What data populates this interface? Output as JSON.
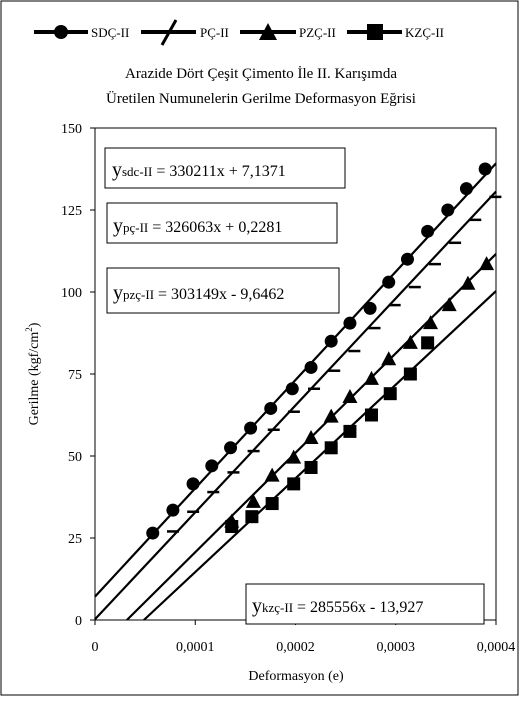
{
  "chart_data": {
    "type": "scatter",
    "title_line1": "Arazide Dört Çeşit Çimento İle II. Karışımda",
    "title_line2": "Üretilen Numunelerin Gerilme Deformasyon Eğrisi",
    "xlabel": "Deformasyon (e)",
    "ylabel_main": "Gerilme (kgf/cm",
    "ylabel_sup": "2",
    "ylabel_close": ")",
    "xlim": [
      0,
      0.0004
    ],
    "ylim": [
      0,
      150
    ],
    "x_ticks": [
      0,
      0.0001,
      0.0002,
      0.0003,
      0.0004
    ],
    "x_tick_labels": [
      "0",
      "0,0001",
      "0,0002",
      "0,0003",
      "0,0004"
    ],
    "y_ticks": [
      0,
      25,
      50,
      75,
      100,
      125,
      150
    ],
    "y_tick_labels": [
      "0",
      "25",
      "50",
      "75",
      "100",
      "125",
      "150"
    ],
    "grid": false,
    "legend_position": "top",
    "series": [
      {
        "name": "SDÇ-II",
        "marker": "circle",
        "x": [
          5.76e-05,
          7.77e-05,
          9.78e-05,
          0.0001165,
          0.0001352,
          0.0001552,
          0.0001753,
          0.0001968,
          0.0002155,
          0.0002356,
          0.0002543,
          0.0002744,
          0.000293,
          0.0003117,
          0.0003318,
          0.0003519,
          0.0003705,
          0.0003892
        ],
        "y": [
          26.5,
          33.5,
          41.5,
          47,
          52.5,
          58.5,
          64.5,
          70.5,
          77,
          85,
          90.5,
          95,
          103,
          110,
          118.5,
          125,
          131.5,
          137.5
        ],
        "fit": {
          "slope": 330211,
          "intercept": 7.1371
        }
      },
      {
        "name": "PÇ-II",
        "marker": "dash",
        "x": [
          7.78e-05,
          9.79e-05,
          0.000118,
          0.0001381,
          0.0001582,
          0.0001783,
          0.0001984,
          0.0002185,
          0.0002386,
          0.0002587,
          0.0002788,
          0.0002989,
          0.000319,
          0.0003391,
          0.0003592,
          0.0003793,
          0.0003994
        ],
        "y": [
          27,
          33,
          39,
          45,
          51.5,
          58,
          63.5,
          70.5,
          76,
          82,
          89,
          96,
          101.5,
          108.5,
          115,
          122,
          129
        ],
        "fit": {
          "slope": 326063,
          "intercept": 0.2281
        }
      },
      {
        "name": "PZÇ-II",
        "marker": "triangle",
        "x": [
          0.0001364,
          0.000158,
          0.0001767,
          0.0001982,
          0.0002155,
          0.0002356,
          0.0002543,
          0.0002758,
          0.000293,
          0.0003146,
          0.0003347,
          0.0003533,
          0.000372,
          0.0003906
        ],
        "y": [
          30,
          36,
          44,
          49.5,
          55.5,
          62,
          68,
          73.5,
          79.5,
          84.5,
          90.5,
          96,
          102.5,
          108.5
        ],
        "fit": {
          "slope": 303149,
          "intercept": -9.6462
        }
      },
      {
        "name": "KZÇ-II",
        "marker": "square",
        "x": [
          0.0001364,
          0.0001565,
          0.0001767,
          0.0001982,
          0.0002155,
          0.0002356,
          0.0002543,
          0.0002758,
          0.0002945,
          0.0003146,
          0.0003318
        ],
        "y": [
          28.5,
          31.5,
          35.5,
          41.5,
          46.5,
          52.5,
          57.5,
          62.5,
          69,
          75,
          84.5
        ],
        "fit": {
          "slope": 285556,
          "intercept": -13.927
        }
      }
    ]
  },
  "equations": [
    {
      "prefix": "y",
      "sub": "sdc-II",
      "rhs": " = 330211x + 7,1371"
    },
    {
      "prefix": "y",
      "sub": "pç-II",
      "rhs": " = 326063x + 0,2281"
    },
    {
      "prefix": "y",
      "sub": "pzç-II",
      "rhs": " = 303149x - 9,6462"
    },
    {
      "prefix": "y",
      "sub": "kzç-II",
      "rhs": " = 285556x - 13,927"
    }
  ]
}
